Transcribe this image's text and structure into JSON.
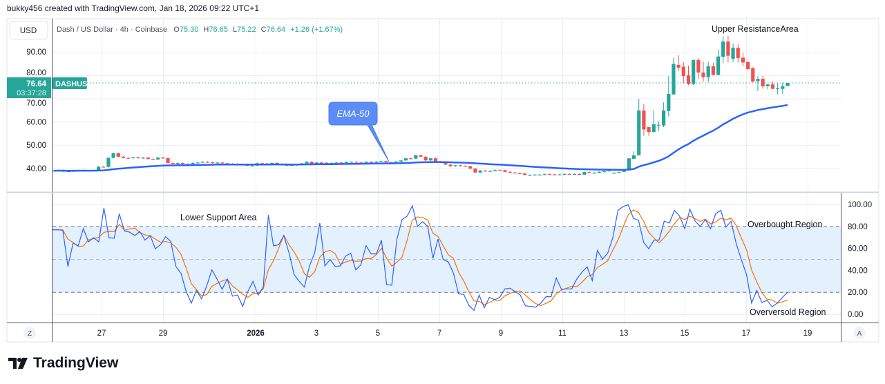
{
  "header": "bukky456 created with TradingView.com, Jan 18, 2026 09:22 UTC+1",
  "currency_button": "USD",
  "legend": {
    "symbol": "Dash / US Dollar · 4h · Coinbase",
    "o_label": "O",
    "o": "75.30",
    "h_label": "H",
    "h": "76.65",
    "l_label": "L",
    "l": "75.22",
    "c_label": "C",
    "c": "76.64",
    "change": "+1.26 (+1.67%)"
  },
  "last_price": {
    "value": "76.64",
    "countdown": "03:37:28",
    "ticker": "DASHUSD"
  },
  "annotations": {
    "ema_callout": "EMA-50",
    "upper": "Upper ResistanceArea",
    "lower": "Lower Support Area",
    "overbought": "Overbought Region",
    "oversold": "Overversold Region"
  },
  "buttons": {
    "z": "Z",
    "a": "A"
  },
  "logo_text": "TradingView",
  "colors": {
    "up": "#26a69a",
    "down": "#ef5350",
    "ema": "#2962ff",
    "rsi": "#2962ff",
    "rsi_ma": "#ff6d00",
    "band": "#e3f0fd",
    "callout": "#5b8cf7"
  },
  "chart_data": [
    {
      "type": "candlestick",
      "title": "Dash / US Dollar · 4h · Coinbase",
      "y_ticks": [
        "90.00",
        "80.00",
        "70.00",
        "60.00",
        "50.00",
        "40.00"
      ],
      "y_tick_values": [
        90,
        80,
        70,
        60,
        50,
        40
      ],
      "ylim": [
        33.5,
        100
      ],
      "x_ticks": [
        "27",
        "29",
        "2026",
        "3",
        "5",
        "7",
        "9",
        "11",
        "13",
        "15",
        "17",
        "19"
      ],
      "early_closes": [
        39.0,
        39.3,
        38.6,
        38.8,
        38.9,
        39.2,
        39.0,
        39.1,
        39.1,
        40.7,
        40.6,
        44.5,
        46.5,
        45,
        44.5,
        44.4,
        44.7,
        44.4,
        44.6,
        44,
        43.8,
        44.6,
        44.4,
        42.3,
        41.9,
        42.3,
        41.9,
        41.9,
        42.3,
        42.5,
        42.8,
        42.6,
        42.3,
        42.5,
        42.2,
        42.0,
        41.9,
        41.6,
        41.4,
        41.2,
        41.2,
        42.2,
        41.8,
        42.1,
        42.3,
        41.9,
        41.4,
        41.4,
        41.3,
        41.6,
        42.1,
        42.8,
        41.9,
        42.5,
        42.4,
        42.1,
        42.3,
        42.5,
        42.3,
        42.7,
        42.8,
        42.5,
        42.4,
        42.8,
        42.6,
        42.9,
        43.1,
        42.6,
        42.6,
        42.9,
        43.4,
        44.3,
        44.2,
        45.6,
        45.0,
        43.4,
        44.3,
        42.9,
        42.6,
        41.6,
        40.9,
        41.3,
        41.0,
        40.9,
        39.9,
        38.2,
        39.0,
        38.8,
        38.9,
        39.3,
        39.2,
        38.5,
        38.2,
        37.9,
        37.8,
        37.2,
        37.2,
        37.3,
        37.3,
        37.5,
        37.4,
        37.3,
        37.4,
        37.6,
        37.5,
        37.6,
        37.3,
        38.4,
        38.1,
        38.1,
        38.5,
        38.8,
        39.2
      ],
      "ohlc": [
        [
          38.1,
          38.3,
          37.9,
          38.1
        ],
        [
          38.1,
          38.6,
          38.0,
          38.4
        ],
        [
          38.5,
          39.2,
          38.4,
          39.0
        ],
        [
          39.1,
          44.3,
          39.0,
          44.3
        ],
        [
          44.1,
          47.3,
          44.0,
          45.6
        ],
        [
          45.6,
          69.8,
          45.5,
          64.8
        ],
        [
          64.8,
          67.6,
          54.0,
          56.7
        ],
        [
          57.7,
          57.9,
          54.0,
          55.6
        ],
        [
          55.6,
          64.8,
          55.3,
          58.9
        ],
        [
          58.7,
          60.2,
          56.0,
          58.7
        ],
        [
          58.4,
          68.3,
          57.7,
          64.8
        ],
        [
          64.6,
          79.6,
          62.3,
          71.9
        ],
        [
          71.7,
          87.5,
          71.5,
          84.8
        ],
        [
          84.4,
          88.5,
          81.6,
          83.2
        ],
        [
          83.6,
          85.5,
          76.5,
          79.6
        ],
        [
          79.9,
          84.0,
          75.7,
          76.2
        ],
        [
          76.2,
          86.7,
          75.7,
          86.5
        ],
        [
          86.5,
          87.3,
          78.4,
          81.1
        ],
        [
          81.1,
          85.8,
          77.3,
          79.1
        ],
        [
          79.1,
          85.8,
          77.0,
          83.8
        ],
        [
          83.8,
          85.3,
          79.8,
          80.1
        ],
        [
          80.1,
          91.0,
          79.9,
          88.0
        ],
        [
          87.8,
          96.6,
          85.0,
          94.4
        ],
        [
          94.4,
          96.8,
          85.4,
          88.3
        ],
        [
          87.0,
          93.5,
          85.6,
          91.7
        ],
        [
          91.7,
          93.3,
          85.4,
          87.3
        ],
        [
          87.5,
          89.5,
          83.8,
          85.4
        ],
        [
          85.6,
          86.0,
          82.0,
          82.6
        ],
        [
          83.0,
          83.4,
          76.9,
          77.2
        ],
        [
          77.4,
          79.6,
          73.2,
          78.4
        ],
        [
          78.4,
          79.6,
          74.2,
          75.2
        ],
        [
          75.2,
          76.2,
          73.9,
          76.0
        ],
        [
          76.0,
          77.2,
          74.1,
          74.1
        ],
        [
          74.2,
          76.5,
          71.7,
          74.3
        ],
        [
          74.1,
          76.7,
          71.9,
          75.2
        ],
        [
          75.3,
          76.65,
          75.22,
          76.64
        ]
      ],
      "overlay": {
        "name": "EMA-50",
        "type": "ema",
        "period": 50
      }
    },
    {
      "type": "line",
      "title": "RSI",
      "y_ticks": [
        "100.00",
        "80.00",
        "60.00",
        "40.00",
        "20.00",
        "0.00"
      ],
      "y_tick_values": [
        100,
        80,
        60,
        40,
        20,
        0
      ],
      "ylim": [
        0,
        100
      ],
      "bands": {
        "upper": 80,
        "middle": 50,
        "lower": 20
      },
      "series": [
        {
          "name": "RSI",
          "values": [
            76.9,
            76.9,
            76.5,
            43.5,
            64.8,
            62.3,
            77.9,
            66,
            69.6,
            66,
            96.7,
            69.6,
            69.2,
            91.5,
            75.8,
            74.8,
            71.7,
            75.2,
            67.5,
            71.7,
            59.6,
            63.3,
            70.6,
            66.5,
            43.5,
            37.3,
            20.6,
            10.2,
            21.7,
            14,
            25.8,
            40.4,
            32.1,
            22.7,
            32.1,
            16.5,
            17.5,
            7.1,
            20.6,
            30,
            17.5,
            24.8,
            90.4,
            62.3,
            63.3,
            71.7,
            56,
            36.3,
            30,
            24.8,
            44,
            56,
            83.1,
            44,
            49.8,
            43.5,
            44,
            52.9,
            55.6,
            40.4,
            45,
            62.3,
            55,
            55,
            67.5,
            26.9,
            26.5,
            68.5,
            86.3,
            89.4,
            98.8,
            80,
            84.2,
            80,
            50.8,
            68.5,
            49.8,
            47.7,
            37.3,
            18.5,
            18.1,
            8.1,
            3.5,
            17.5,
            6,
            15.4,
            13.3,
            15.4,
            23.1,
            23.8,
            20.6,
            17.5,
            7.7,
            7.1,
            6.5,
            10.2,
            16,
            16,
            33.1,
            22.7,
            23.1,
            23.1,
            32.1,
            38.3,
            43.1,
            30.6,
            58.1,
            50.2,
            55.6,
            69.6,
            94.6,
            98.1,
            99.8,
            87.3,
            85.6,
            65.4,
            59.6,
            67.5,
            67.5,
            84.8,
            83.1,
            94.6,
            89.4,
            77.9,
            95.6,
            84.8,
            80,
            86.3,
            77.9,
            91.5,
            94.6,
            79.4,
            84.6,
            64.4,
            49.8,
            36.3,
            10.2,
            21.7,
            10.6,
            12.7,
            6.8,
            10.2,
            15.4,
            20
          ]
        },
        {
          "name": "RSI-based MA",
          "type": "sma",
          "period": 4
        }
      ]
    }
  ]
}
